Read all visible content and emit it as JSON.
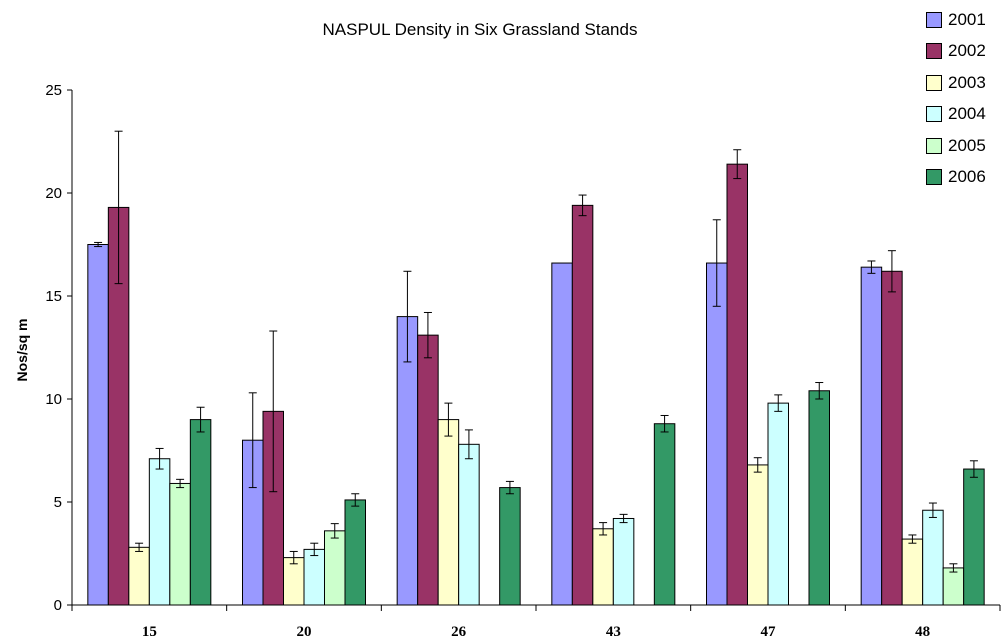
{
  "chart_data": {
    "type": "bar",
    "title": "NASPUL Density in Six Grassland Stands",
    "xlabel": "",
    "ylabel": "Nos/sq m",
    "ylim": [
      0,
      25
    ],
    "yticks": [
      "0",
      "5",
      "10",
      "15",
      "20",
      "25"
    ],
    "grid": false,
    "legend_position": "top-right",
    "categories": [
      "15",
      "20",
      "26",
      "43",
      "47",
      "48"
    ],
    "series": [
      {
        "name": "2001",
        "color": "#9999ff",
        "values": [
          17.5,
          8.0,
          14.0,
          16.6,
          16.6,
          16.4
        ],
        "errors": [
          0.1,
          2.3,
          2.2,
          null,
          2.1,
          0.3
        ]
      },
      {
        "name": "2002",
        "color": "#993366",
        "values": [
          19.3,
          9.4,
          13.1,
          19.4,
          21.4,
          16.2
        ],
        "errors": [
          3.7,
          3.9,
          1.1,
          0.5,
          0.7,
          1.0
        ]
      },
      {
        "name": "2003",
        "color": "#ffffcc",
        "values": [
          2.8,
          2.3,
          9.0,
          3.7,
          6.8,
          3.2
        ],
        "errors": [
          0.2,
          0.3,
          0.8,
          0.3,
          0.35,
          0.2
        ]
      },
      {
        "name": "2004",
        "color": "#ccffff",
        "values": [
          7.1,
          2.7,
          7.8,
          4.2,
          9.8,
          4.6
        ],
        "errors": [
          0.5,
          0.3,
          0.7,
          0.2,
          0.4,
          0.35
        ]
      },
      {
        "name": "2005",
        "color": "#ccffcc",
        "values": [
          5.9,
          3.6,
          null,
          null,
          null,
          1.8
        ],
        "errors": [
          0.2,
          0.35,
          null,
          null,
          null,
          0.2
        ]
      },
      {
        "name": "2006",
        "color": "#339966",
        "values": [
          9.0,
          5.1,
          5.7,
          8.8,
          10.4,
          6.6
        ],
        "errors": [
          0.6,
          0.3,
          0.3,
          0.4,
          0.4,
          0.4
        ]
      }
    ]
  }
}
